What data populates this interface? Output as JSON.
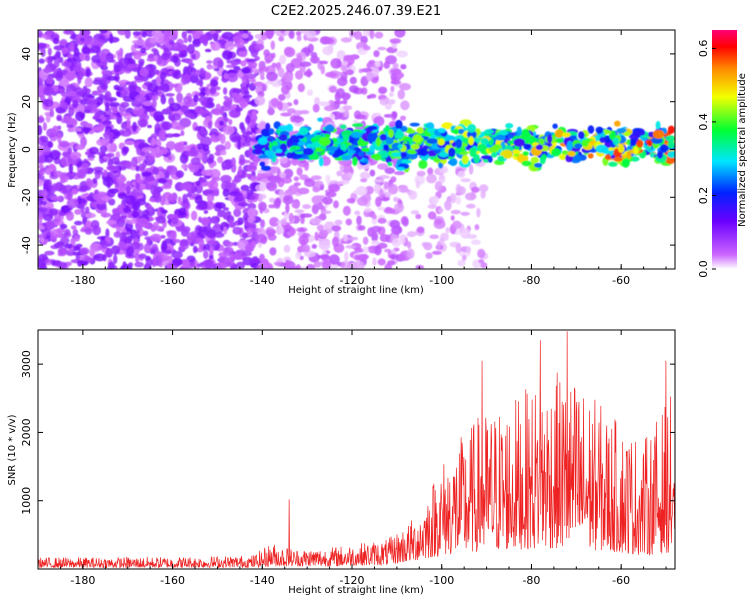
{
  "title": "C2E2.2025.246.07.39.E21",
  "chart_data": [
    {
      "type": "heatmap",
      "name": "spectrogram",
      "xlabel": "Height of straight line (km)",
      "ylabel": "Frequency (Hz)",
      "xlim": [
        -190,
        -48
      ],
      "ylim": [
        -50,
        50
      ],
      "xticks": [
        -180,
        -160,
        -140,
        -120,
        -100,
        -80,
        -60
      ],
      "yticks": [
        -40,
        -20,
        0,
        20,
        40
      ],
      "colorbar": {
        "label": "Normalized spectral amplitude",
        "range": [
          0.0,
          0.65
        ],
        "ticks": [
          0.0,
          0.2,
          0.4,
          0.6
        ]
      },
      "regions": [
        {
          "x_from": -190,
          "x_to": -141,
          "freq_band": [
            -50,
            50
          ],
          "amplitude": [
            0.03,
            0.12
          ],
          "density": "high"
        },
        {
          "x_from": -141,
          "x_to": -108,
          "freq_band": [
            -50,
            50
          ],
          "amplitude": [
            0.01,
            0.06
          ],
          "density": "medium"
        },
        {
          "x_from": -108,
          "x_to": -90,
          "freq_band": [
            -50,
            -5
          ],
          "amplitude": [
            0.01,
            0.04
          ],
          "density": "low"
        },
        {
          "x_from": -141,
          "x_to": -48,
          "freq_band": [
            -8,
            8
          ],
          "amplitude": [
            0.15,
            0.62
          ],
          "density": "signal",
          "center_freq": 2
        }
      ]
    },
    {
      "type": "line",
      "name": "snr",
      "xlabel": "Height of straight line (km)",
      "ylabel": "SNR (10 * v/v)",
      "xlim": [
        -190,
        -48
      ],
      "ylim": [
        0,
        3500
      ],
      "xticks": [
        -180,
        -160,
        -140,
        -120,
        -100,
        -80,
        -60
      ],
      "yticks": [
        1000,
        2000,
        3000
      ],
      "color": "#ee2222",
      "envelope": [
        {
          "x": -190,
          "base": 20,
          "amp": 150
        },
        {
          "x": -160,
          "base": 20,
          "amp": 160
        },
        {
          "x": -142,
          "base": 25,
          "amp": 180
        },
        {
          "x": -138,
          "base": 40,
          "amp": 350
        },
        {
          "x": -133,
          "base": 40,
          "amp": 260
        },
        {
          "x": -125,
          "base": 40,
          "amp": 280
        },
        {
          "x": -112,
          "base": 60,
          "amp": 380
        },
        {
          "x": -106,
          "base": 120,
          "amp": 650
        },
        {
          "x": -100,
          "base": 200,
          "amp": 1400
        },
        {
          "x": -92,
          "base": 250,
          "amp": 2000
        },
        {
          "x": -85,
          "base": 280,
          "amp": 2200
        },
        {
          "x": -75,
          "base": 300,
          "amp": 2600
        },
        {
          "x": -70,
          "base": 300,
          "amp": 2500
        },
        {
          "x": -62,
          "base": 250,
          "amp": 2000
        },
        {
          "x": -55,
          "base": 200,
          "amp": 1700
        },
        {
          "x": -48,
          "base": 250,
          "amp": 2400
        }
      ],
      "peaks": [
        {
          "x": -134,
          "y": 1020
        },
        {
          "x": -72,
          "y": 3480
        },
        {
          "x": -78,
          "y": 3350
        },
        {
          "x": -91,
          "y": 3050
        },
        {
          "x": -50,
          "y": 3050
        }
      ]
    }
  ]
}
